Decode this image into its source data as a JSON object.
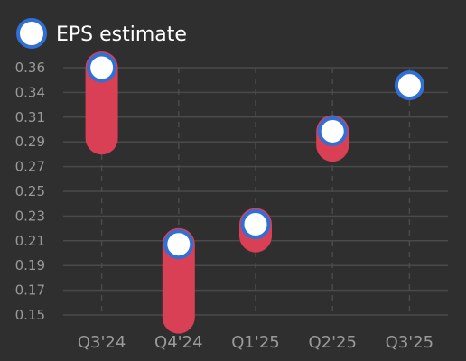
{
  "chart_data": {
    "type": "scatter",
    "legend": {
      "label": "EPS estimate",
      "position": "top-left"
    },
    "categories": [
      "Q3'24",
      "Q4'24",
      "Q1'25",
      "Q2'25",
      "Q3'25"
    ],
    "series": [
      {
        "name": "EPS estimate",
        "values": [
          0.36,
          0.21,
          0.227,
          0.306,
          0.345
        ]
      }
    ],
    "actual_range_bars": [
      {
        "category": "Q3'24",
        "from": 0.3,
        "to": 0.36
      },
      {
        "category": "Q4'24",
        "from": 0.148,
        "to": 0.21
      },
      {
        "category": "Q1'25",
        "from": 0.217,
        "to": 0.227
      },
      {
        "category": "Q2'25",
        "from": 0.294,
        "to": 0.306
      }
    ],
    "y_ticks": [
      "0.36",
      "0.34",
      "0.31",
      "0.29",
      "0.27",
      "0.25",
      "0.23",
      "0.21",
      "0.19",
      "0.17",
      "0.15"
    ],
    "ylim": [
      0.15,
      0.36
    ],
    "grid": true,
    "colors": {
      "background": "#2f2f2f",
      "marker_fill": "#ffffff",
      "marker_stroke": "#2f6fd6",
      "bar": "#d93f55",
      "grid": "#4a4a4a",
      "tick_text": "#9a9a9a"
    }
  }
}
